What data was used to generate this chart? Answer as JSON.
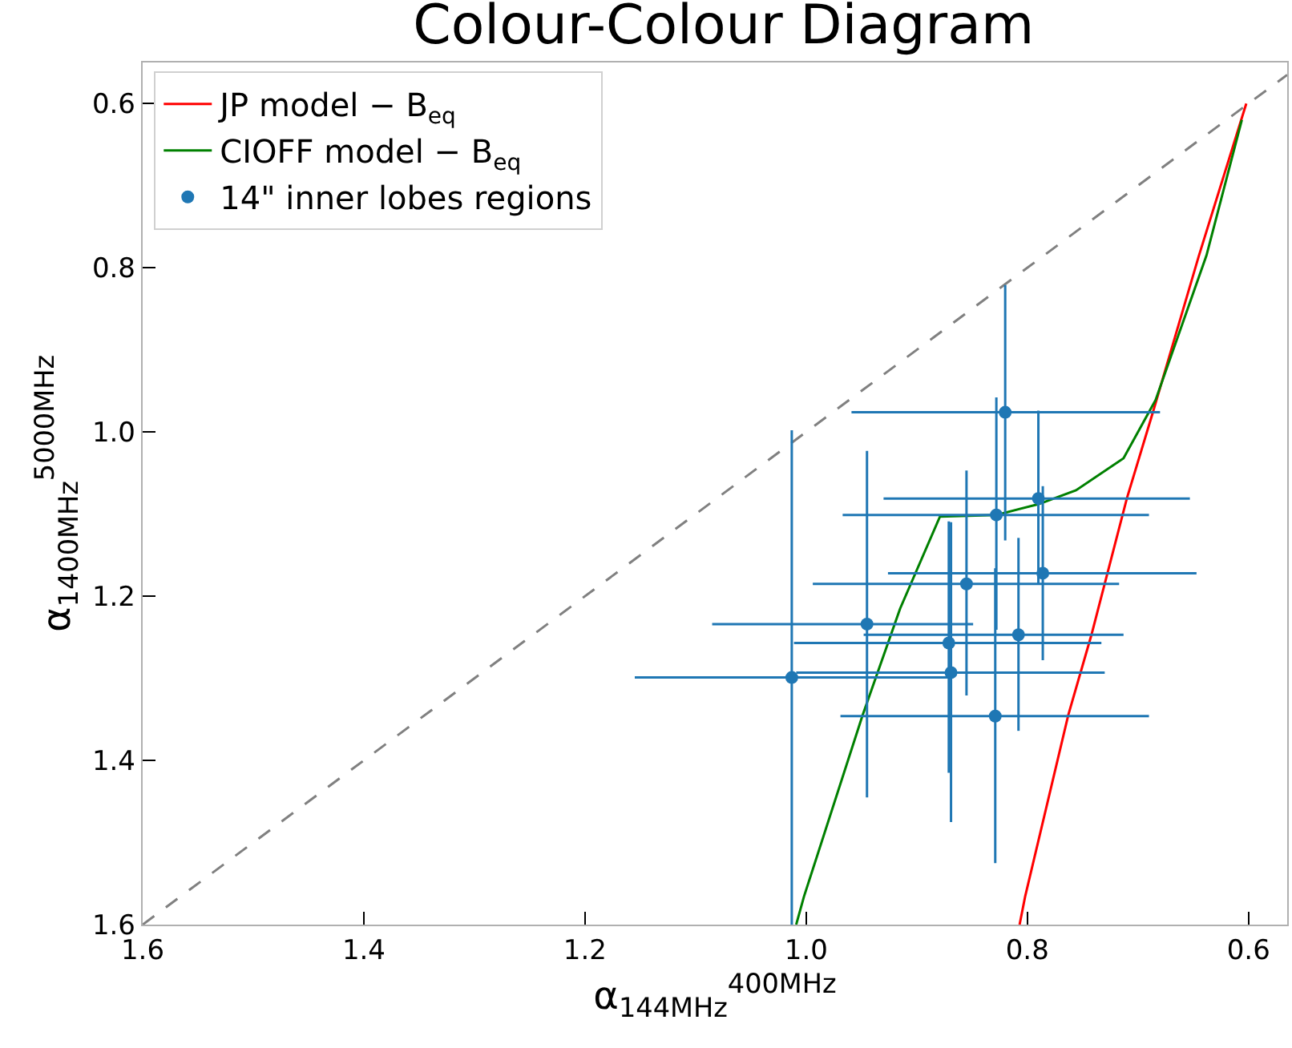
{
  "chart_data": {
    "type": "scatter",
    "title": "Colour-Colour Diagram",
    "xlabel": "α$_{144MHz}$$^{400MHz}$",
    "ylabel": "α$_{1400MHz}$$^{5000MHz}$",
    "xlim": [
      1.6,
      0.565
    ],
    "ylim": [
      1.6,
      0.55
    ],
    "xticks": [
      {
        "value": 1.6,
        "label": "1.6"
      },
      {
        "value": 1.4,
        "label": "1.4"
      },
      {
        "value": 1.2,
        "label": "1.2"
      },
      {
        "value": 1.0,
        "label": "1.0"
      },
      {
        "value": 0.8,
        "label": "0.8"
      },
      {
        "value": 0.6,
        "label": "0.6"
      }
    ],
    "yticks": [
      {
        "value": 0.6,
        "label": "0.6"
      },
      {
        "value": 0.8,
        "label": "0.8"
      },
      {
        "value": 1.0,
        "label": "1.0"
      },
      {
        "value": 1.2,
        "label": "1.2"
      },
      {
        "value": 1.4,
        "label": "1.4"
      },
      {
        "value": 1.6,
        "label": "1.6"
      }
    ],
    "legend": "top left",
    "series": [
      {
        "type": "line",
        "color": "#808080",
        "line_style": "dashed",
        "marker": "none",
        "x": [
          1.6,
          0.565
        ],
        "values": [
          1.6,
          0.565
        ]
      },
      {
        "type": "line",
        "name": "JP model − B$_{eq}$",
        "color": "#ff0000",
        "line_style": "solid",
        "marker": "none",
        "x": [
          0.602,
          0.645,
          0.686,
          0.71,
          0.742,
          0.763,
          0.802,
          0.807
        ],
        "values": [
          0.6,
          0.786,
          0.974,
          1.081,
          1.247,
          1.345,
          1.566,
          1.6
        ]
      },
      {
        "type": "line",
        "name": "CIOFF model − B$_{eq}$",
        "color": "#008000",
        "line_style": "solid",
        "marker": "none",
        "x": [
          0.606,
          0.638,
          0.684,
          0.713,
          0.756,
          0.79,
          0.828,
          0.879,
          0.915,
          0.949,
          1.002,
          1.009
        ],
        "values": [
          0.62,
          0.785,
          0.961,
          1.032,
          1.071,
          1.088,
          1.101,
          1.103,
          1.215,
          1.345,
          1.566,
          1.6
        ]
      },
      {
        "name": "14\" inner lobes regions",
        "color": "#1f77b4",
        "marker": "circle",
        "x": [
          0.82,
          0.79,
          0.828,
          0.786,
          0.855,
          0.945,
          0.808,
          0.871,
          0.869,
          1.013,
          0.829
        ],
        "values": [
          0.976,
          1.081,
          1.101,
          1.172,
          1.185,
          1.234,
          1.247,
          1.257,
          1.293,
          1.299,
          1.346
        ],
        "xerrors": [
          [
            0.959,
            0.68
          ],
          [
            0.93,
            0.653
          ],
          [
            0.967,
            0.69
          ],
          [
            0.926,
            0.647
          ],
          [
            0.994,
            0.717
          ],
          [
            1.085,
            0.849
          ],
          [
            0.948,
            0.713
          ],
          [
            1.011,
            0.733
          ],
          [
            1.009,
            0.73
          ],
          [
            1.155,
            0.871
          ],
          [
            0.969,
            0.69
          ]
        ],
        "errors": [
          [
            0.821,
            1.132
          ],
          [
            0.974,
            1.185
          ],
          [
            0.958,
            1.241
          ],
          [
            1.066,
            1.278
          ],
          [
            1.047,
            1.321
          ],
          [
            1.023,
            1.445
          ],
          [
            1.129,
            1.364
          ],
          [
            1.109,
            1.415
          ],
          [
            1.11,
            1.475
          ],
          [
            0.998,
            1.6
          ],
          [
            1.166,
            1.525
          ]
        ]
      }
    ]
  }
}
